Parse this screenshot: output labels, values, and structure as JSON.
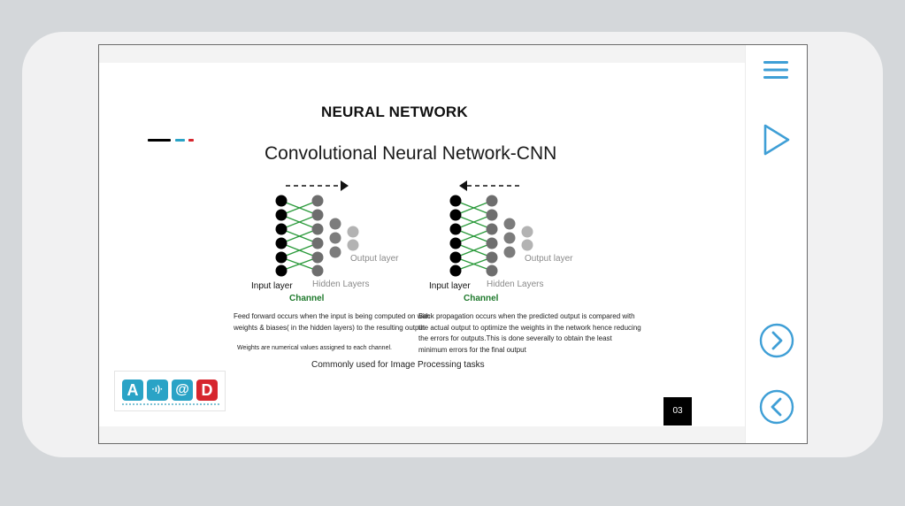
{
  "slide": {
    "title": "NEURAL NETWORK",
    "heading": "Convolutional Neural Network-CNN",
    "page_number": "03",
    "caption": "Commonly used for Image Processing tasks"
  },
  "accent_colors": [
    "#000000",
    "#2aa3c6",
    "#d6262e"
  ],
  "diagrams": {
    "left": {
      "input_label": "Input layer",
      "hidden_label": "Hidden Layers",
      "output_label": "Output layer",
      "channel_label": "Channel",
      "arrow_direction": "right"
    },
    "right": {
      "input_label": "Input layer",
      "hidden_label": "Hidden Layers",
      "output_label": "Output layer",
      "channel_label": "Channel",
      "arrow_direction": "left"
    }
  },
  "notes": {
    "feed_forward": [
      "Feed forward occurs when the input is being computed on with",
      "weights & biases( in the hidden layers) to the resulting output"
    ],
    "weights": "Weights are numerical values assigned to each channel.",
    "back_propagation": [
      "Back propagation occurs when the predicted output is compared with",
      "the actual output to optimize the weights in the network hence reducing",
      "the errors for outputs.This is done severally to obtain the least",
      "minimum errors  for the final output"
    ]
  },
  "logo": {
    "letters": [
      "A",
      "·ı)·",
      "@",
      "D"
    ],
    "colors": [
      "#2aa3c6",
      "#2aa3c6",
      "#2aa3c6",
      "#d6262e"
    ]
  },
  "sidebar": {
    "menu_icon": "hamburger-menu-icon",
    "play_icon": "play-triangle-icon",
    "next_icon": "chevron-right-circle-icon",
    "prev_icon": "chevron-left-circle-icon",
    "icon_color": "#3f9fd6"
  }
}
